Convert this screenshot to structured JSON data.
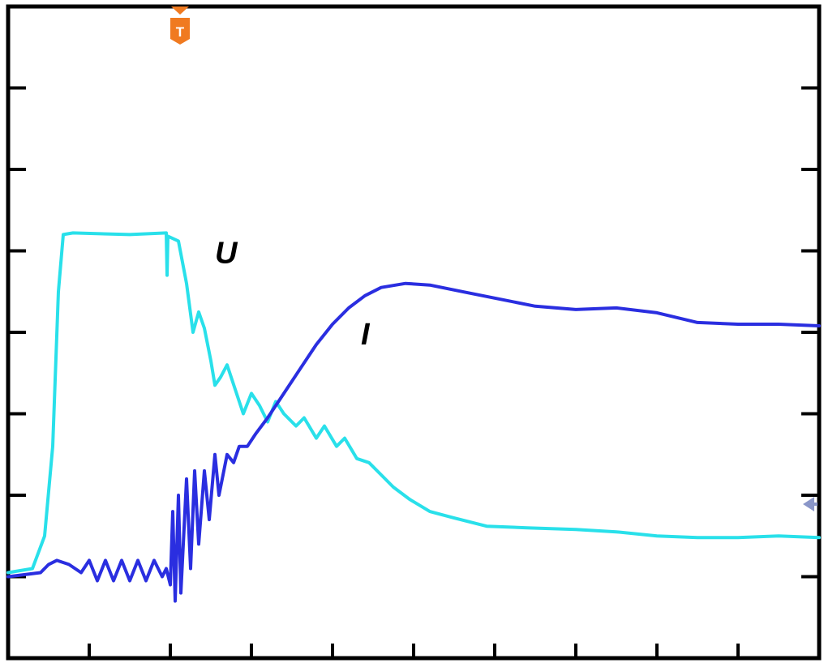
{
  "chart_data": {
    "type": "line",
    "title": "",
    "xlabel": "",
    "ylabel": "",
    "xlim": [
      0,
      10
    ],
    "ylim": [
      -1,
      7
    ],
    "grid": false,
    "series": [
      {
        "name": "U",
        "color": "#29e0ea",
        "points": [
          [
            0,
            0.05
          ],
          [
            0.3,
            0.1
          ],
          [
            0.45,
            0.5
          ],
          [
            0.55,
            1.6
          ],
          [
            0.62,
            3.5
          ],
          [
            0.68,
            4.2
          ],
          [
            0.8,
            4.22
          ],
          [
            1.5,
            4.2
          ],
          [
            1.95,
            4.22
          ],
          [
            1.96,
            3.7
          ],
          [
            1.97,
            4.18
          ],
          [
            2.1,
            4.12
          ],
          [
            2.2,
            3.6
          ],
          [
            2.28,
            3.0
          ],
          [
            2.35,
            3.25
          ],
          [
            2.42,
            3.05
          ],
          [
            2.5,
            2.65
          ],
          [
            2.55,
            2.35
          ],
          [
            2.62,
            2.45
          ],
          [
            2.7,
            2.6
          ],
          [
            2.8,
            2.3
          ],
          [
            2.9,
            2.0
          ],
          [
            3.0,
            2.25
          ],
          [
            3.1,
            2.1
          ],
          [
            3.2,
            1.9
          ],
          [
            3.3,
            2.15
          ],
          [
            3.4,
            2.0
          ],
          [
            3.55,
            1.85
          ],
          [
            3.65,
            1.95
          ],
          [
            3.8,
            1.7
          ],
          [
            3.9,
            1.85
          ],
          [
            4.05,
            1.6
          ],
          [
            4.15,
            1.7
          ],
          [
            4.3,
            1.45
          ],
          [
            4.45,
            1.4
          ],
          [
            4.6,
            1.25
          ],
          [
            4.75,
            1.1
          ],
          [
            4.95,
            0.95
          ],
          [
            5.2,
            0.8
          ],
          [
            5.5,
            0.72
          ],
          [
            5.9,
            0.62
          ],
          [
            6.4,
            0.6
          ],
          [
            7.0,
            0.58
          ],
          [
            7.5,
            0.55
          ],
          [
            8.0,
            0.5
          ],
          [
            8.5,
            0.48
          ],
          [
            9.0,
            0.48
          ],
          [
            9.5,
            0.5
          ],
          [
            10.0,
            0.48
          ]
        ]
      },
      {
        "name": "I",
        "color": "#2a2ee0",
        "points": [
          [
            0,
            0.0
          ],
          [
            0.4,
            0.05
          ],
          [
            0.5,
            0.15
          ],
          [
            0.6,
            0.2
          ],
          [
            0.75,
            0.15
          ],
          [
            0.9,
            0.05
          ],
          [
            1.0,
            0.2
          ],
          [
            1.1,
            -0.05
          ],
          [
            1.2,
            0.2
          ],
          [
            1.3,
            -0.05
          ],
          [
            1.4,
            0.2
          ],
          [
            1.5,
            -0.05
          ],
          [
            1.6,
            0.2
          ],
          [
            1.7,
            -0.05
          ],
          [
            1.8,
            0.2
          ],
          [
            1.9,
            0.0
          ],
          [
            1.95,
            0.1
          ],
          [
            2.0,
            -0.1
          ],
          [
            2.03,
            0.8
          ],
          [
            2.06,
            -0.3
          ],
          [
            2.1,
            1.0
          ],
          [
            2.13,
            -0.2
          ],
          [
            2.2,
            1.2
          ],
          [
            2.25,
            0.1
          ],
          [
            2.3,
            1.3
          ],
          [
            2.35,
            0.4
          ],
          [
            2.42,
            1.3
          ],
          [
            2.48,
            0.7
          ],
          [
            2.55,
            1.5
          ],
          [
            2.6,
            1.0
          ],
          [
            2.7,
            1.5
          ],
          [
            2.78,
            1.4
          ],
          [
            2.85,
            1.6
          ],
          [
            2.95,
            1.6
          ],
          [
            3.05,
            1.75
          ],
          [
            3.2,
            1.95
          ],
          [
            3.4,
            2.25
          ],
          [
            3.6,
            2.55
          ],
          [
            3.8,
            2.85
          ],
          [
            4.0,
            3.1
          ],
          [
            4.2,
            3.3
          ],
          [
            4.4,
            3.45
          ],
          [
            4.6,
            3.55
          ],
          [
            4.9,
            3.6
          ],
          [
            5.2,
            3.58
          ],
          [
            5.6,
            3.5
          ],
          [
            6.0,
            3.42
          ],
          [
            6.5,
            3.32
          ],
          [
            7.0,
            3.28
          ],
          [
            7.5,
            3.3
          ],
          [
            8.0,
            3.24
          ],
          [
            8.5,
            3.12
          ],
          [
            9.0,
            3.1
          ],
          [
            9.5,
            3.1
          ],
          [
            10.0,
            3.08
          ]
        ]
      }
    ],
    "annotations": [
      {
        "text": "U",
        "x": 2.55,
        "y": 3.85
      },
      {
        "text": "I",
        "x": 4.35,
        "y": 2.85
      }
    ],
    "trigger_marker": {
      "label": "T",
      "x": 2.1,
      "color": "#f07a20"
    },
    "reference_marker_color": "#8a96c8"
  }
}
